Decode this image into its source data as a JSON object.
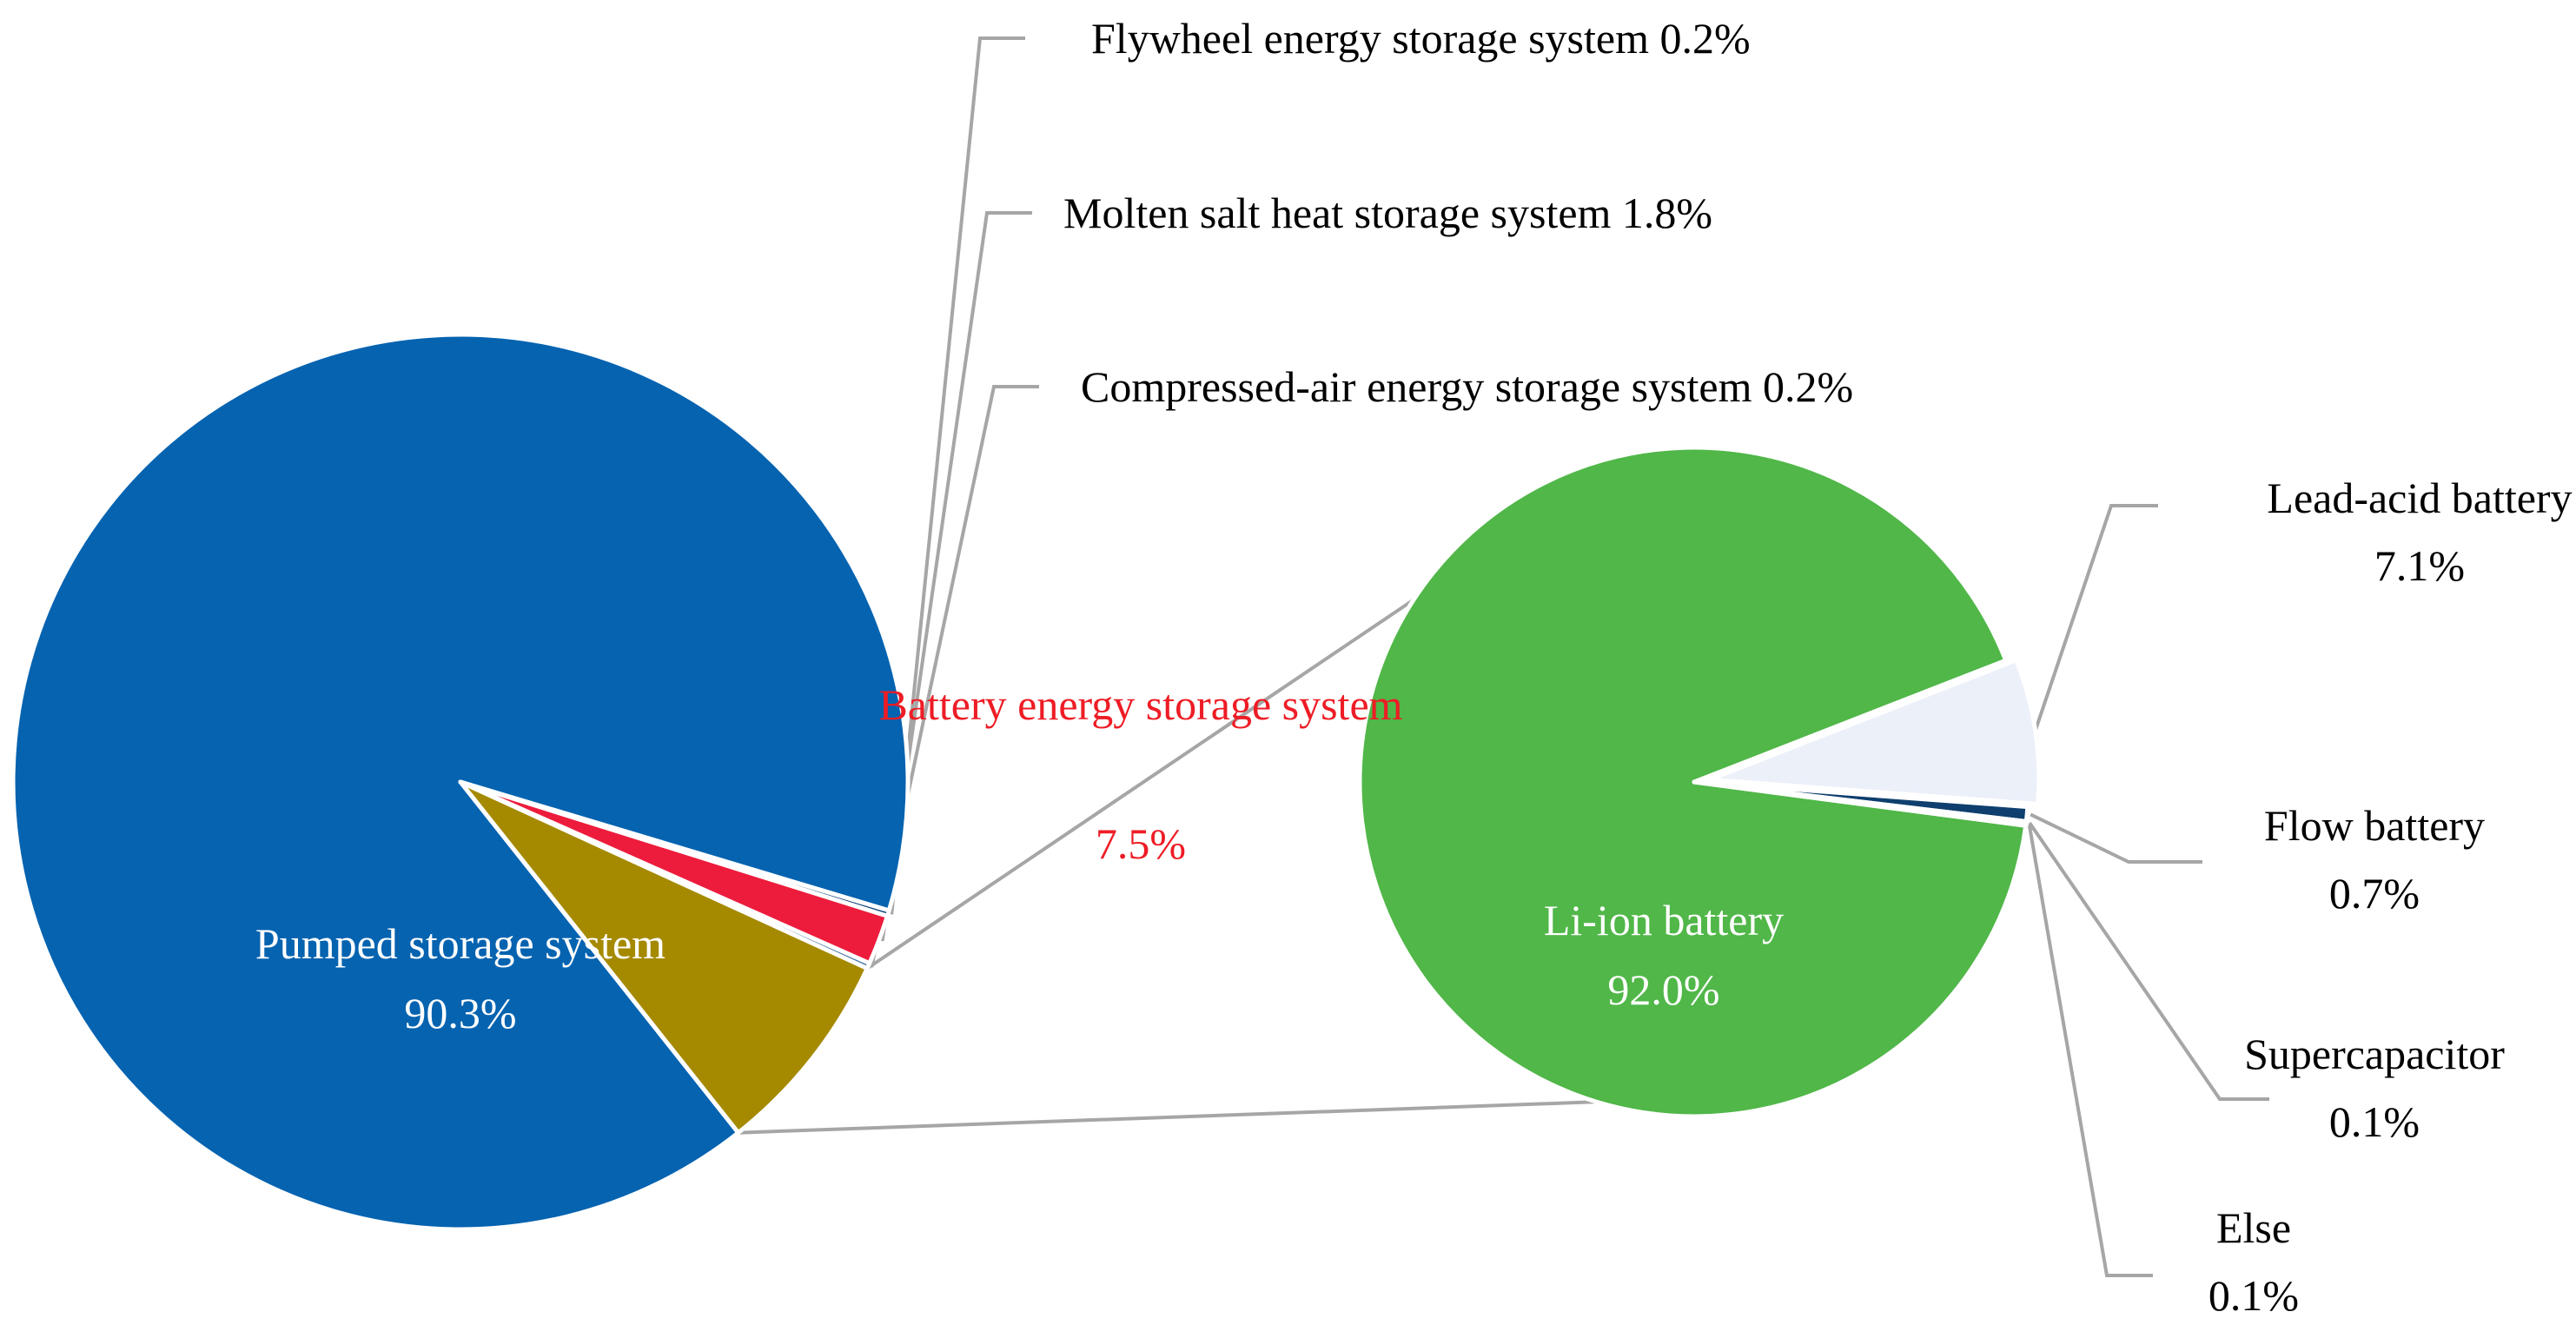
{
  "chart_data": [
    {
      "type": "pie",
      "title": "",
      "slices": [
        {
          "label": "Pumped storage system",
          "value": 90.3,
          "value_label": "90.3%",
          "color": "#0563B0"
        },
        {
          "label": "Battery energy storage system",
          "value": 7.5,
          "value_label": "7.5%",
          "color": "#A58A00"
        },
        {
          "label": "Compressed-air energy storage system",
          "value": 0.2,
          "value_label": "0.2%",
          "color": "#3E6D9E"
        },
        {
          "label": "Molten salt heat storage system",
          "value": 1.8,
          "value_label": "1.8%",
          "color": "#ED1C3C"
        },
        {
          "label": "Flywheel energy storage system",
          "value": 0.2,
          "value_label": "0.2%",
          "color": "#0A3F75"
        }
      ],
      "label_colors": {
        "inside": "#FFFFFF",
        "outside": "#000000",
        "highlight": "#EE1C25"
      },
      "leader_line_color": "#A6A6A6"
    },
    {
      "type": "pie",
      "title": "",
      "parent_slice": "Battery energy storage system",
      "slices": [
        {
          "label": "Li-ion battery",
          "value": 92.0,
          "value_label": "92.0%",
          "color": "#50B748"
        },
        {
          "label": "Lead-acid battery",
          "value": 7.1,
          "value_label": "7.1%",
          "color": "#EBF0F9"
        },
        {
          "label": "Flow battery",
          "value": 0.7,
          "value_label": "0.7%",
          "color": "#0E3F6E"
        },
        {
          "label": "Supercapacitor",
          "value": 0.1,
          "value_label": "0.1%",
          "color": "#5A8CC0"
        },
        {
          "label": "Else",
          "value": 0.1,
          "value_label": "0.1%",
          "color": "#9DC3E6"
        }
      ]
    }
  ]
}
